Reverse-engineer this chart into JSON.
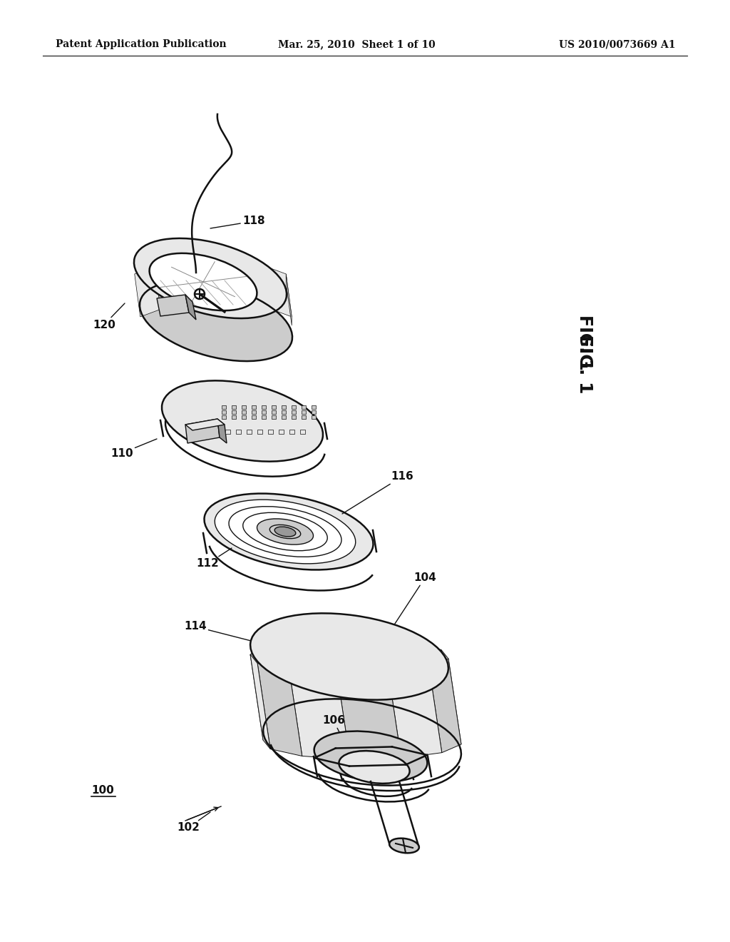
{
  "background_color": "#ffffff",
  "header_left": "Patent Application Publication",
  "header_center": "Mar. 25, 2010  Sheet 1 of 10",
  "header_right": "US 2010/0073669 A1",
  "fig_label": "FIG. 1",
  "line_color": "#111111",
  "shade_color": "#cccccc",
  "shade_color2": "#e8e8e8",
  "shade_dark": "#999999",
  "label_fontsize": 11,
  "header_fontsize": 10
}
